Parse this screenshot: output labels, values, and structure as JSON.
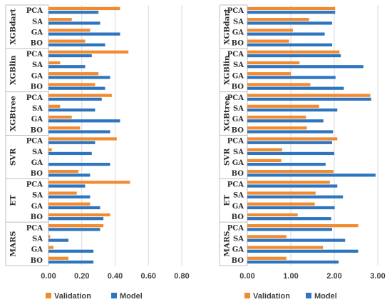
{
  "colors": {
    "validation": "#F28A30",
    "model": "#2E75C0",
    "grid": "#D9D9D9",
    "axis": "#BFBFBF"
  },
  "chart_data": [
    {
      "type": "bar",
      "orientation": "horizontal",
      "groups": [
        "XGBdart",
        "XGBlin",
        "XGBtree",
        "SVR",
        "ET",
        "MARS"
      ],
      "categories": [
        "PCA",
        "SA",
        "GA",
        "BO"
      ],
      "xlim": [
        0,
        0.8
      ],
      "xticks": [
        "0.00",
        "0.20",
        "0.40",
        "0.60",
        "0.80"
      ],
      "grid": true,
      "legend": "bottom",
      "series": [
        {
          "name": "Validation",
          "values": [
            [
              0.43,
              0.14,
              0.25,
              0.22
            ],
            [
              0.48,
              0.07,
              0.3,
              0.28
            ],
            [
              0.38,
              0.07,
              0.14,
              0.19
            ],
            [
              0.41,
              0.02,
              0.0,
              0.18
            ],
            [
              0.49,
              0.17,
              0.25,
              0.37
            ],
            [
              0.33,
              0.01,
              0.03,
              0.12
            ]
          ]
        },
        {
          "name": "Model",
          "values": [
            [
              0.3,
              0.31,
              0.43,
              0.34
            ],
            [
              0.26,
              0.22,
              0.37,
              0.34
            ],
            [
              0.32,
              0.28,
              0.43,
              0.37
            ],
            [
              0.28,
              0.26,
              0.37,
              0.25
            ],
            [
              0.22,
              0.25,
              0.31,
              0.33
            ],
            [
              0.31,
              0.12,
              0.27,
              0.27
            ]
          ]
        }
      ]
    },
    {
      "type": "bar",
      "orientation": "horizontal",
      "groups": [
        "XGBdart",
        "XGBlin",
        "XGBtree",
        "SVR",
        "ET",
        "MARS"
      ],
      "categories": [
        "PCA",
        "SA",
        "GA",
        "BO"
      ],
      "xlim": [
        0,
        3.0
      ],
      "xticks": [
        "0.00",
        "1.00",
        "2.00",
        "3.00"
      ],
      "grid": true,
      "legend": "bottom",
      "series": [
        {
          "name": "Validation",
          "values": [
            [
              2.02,
              1.42,
              1.05,
              0.96
            ],
            [
              2.12,
              1.2,
              1.0,
              1.45
            ],
            [
              2.83,
              1.65,
              1.35,
              1.37
            ],
            [
              2.07,
              0.8,
              0.78,
              1.98
            ],
            [
              1.9,
              1.57,
              1.55,
              1.16
            ],
            [
              2.55,
              0.9,
              1.74,
              0.9
            ]
          ]
        },
        {
          "name": "Model",
          "values": [
            [
              2.02,
              1.95,
              1.78,
              1.95
            ],
            [
              2.15,
              2.67,
              2.03,
              2.22
            ],
            [
              2.85,
              2.07,
              1.75,
              1.97
            ],
            [
              1.95,
              2.0,
              1.8,
              2.95
            ],
            [
              2.07,
              2.2,
              2.01,
              1.93
            ],
            [
              1.95,
              2.25,
              2.55,
              2.1
            ]
          ]
        }
      ]
    }
  ]
}
